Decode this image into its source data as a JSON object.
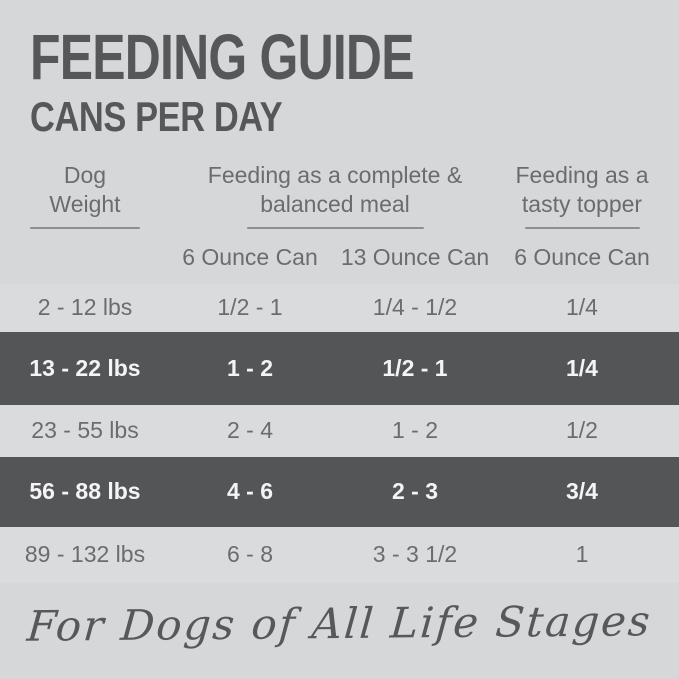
{
  "header": {
    "title": "FEEDING GUIDE",
    "subtitle": "CANS PER DAY"
  },
  "table": {
    "col_groups": [
      {
        "line1": "Dog",
        "line2": "Weight"
      },
      {
        "line1": "Feeding as a complete &",
        "line2": "balanced meal"
      },
      {
        "line1": "Feeding as a",
        "line2": "tasty topper"
      }
    ],
    "sub_headers": {
      "col2": "6 Ounce Can",
      "col3": "13 Ounce Can",
      "col4": "6 Ounce Can"
    },
    "rows": [
      {
        "weight": "2 - 12 lbs",
        "six_oz": "1/2 - 1",
        "thirteen_oz": "1/4 - 1/2",
        "topper": "1/4"
      },
      {
        "weight": "13 - 22 lbs",
        "six_oz": "1 - 2",
        "thirteen_oz": "1/2 - 1",
        "topper": "1/4"
      },
      {
        "weight": "23 - 55 lbs",
        "six_oz": "2 - 4",
        "thirteen_oz": "1 - 2",
        "topper": "1/2"
      },
      {
        "weight": "56 - 88 lbs",
        "six_oz": "4 - 6",
        "thirteen_oz": "2 - 3",
        "topper": "3/4"
      },
      {
        "weight": "89 - 132 lbs",
        "six_oz": "6 - 8",
        "thirteen_oz": "3 - 3 1/2",
        "topper": "1"
      }
    ]
  },
  "footer": {
    "tagline": "For Dogs of All Life Stages"
  },
  "colors": {
    "background": "#d6d7d9",
    "row_light": "#dadbdd",
    "row_dark": "#545557",
    "title_text": "#565759",
    "body_text": "#6b6c6f",
    "dark_row_text": "#f4f4f5",
    "underline": "#8e8f92"
  },
  "chart_data": {
    "type": "table",
    "title": "FEEDING GUIDE — CANS PER DAY",
    "column_groups": [
      "Dog Weight",
      "Feeding as a complete & balanced meal",
      "Feeding as a tasty topper"
    ],
    "columns": [
      "Dog Weight",
      "Complete meal: 6 Ounce Can",
      "Complete meal: 13 Ounce Can",
      "Tasty topper: 6 Ounce Can"
    ],
    "rows": [
      [
        "2 - 12 lbs",
        "1/2 - 1",
        "1/4 - 1/2",
        "1/4"
      ],
      [
        "13 - 22 lbs",
        "1 - 2",
        "1/2 - 1",
        "1/4"
      ],
      [
        "23 - 55 lbs",
        "2 - 4",
        "1 - 2",
        "1/2"
      ],
      [
        "56 - 88 lbs",
        "4 - 6",
        "2 - 3",
        "3/4"
      ],
      [
        "89 - 132 lbs",
        "6 - 8",
        "3 - 3 1/2",
        "1"
      ]
    ],
    "highlighted_rows": [
      1,
      3
    ],
    "footnote": "For Dogs of All Life Stages"
  }
}
